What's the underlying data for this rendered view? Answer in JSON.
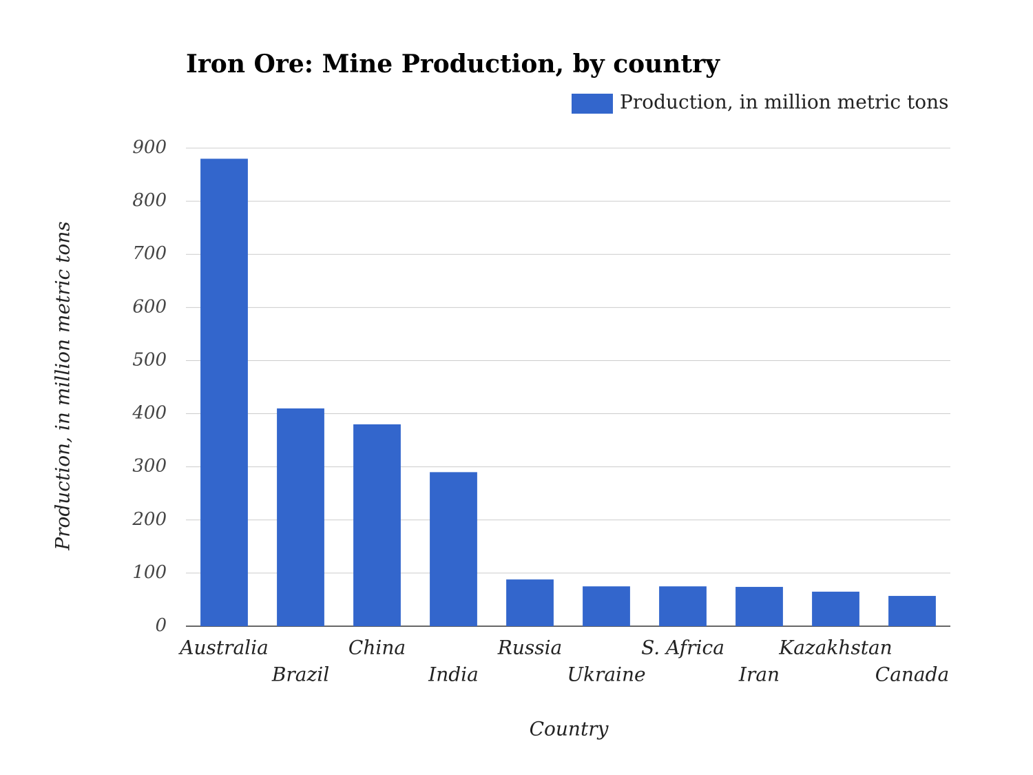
{
  "chart_data": {
    "type": "bar",
    "title": "Iron Ore: Mine Production, by country",
    "x_label": "Country",
    "y_label": "Production, in million metric tons",
    "categories": [
      "Australia",
      "Brazil",
      "China",
      "India",
      "Russia",
      "Ukraine",
      "S. Africa",
      "Iran",
      "Kazakhstan",
      "Canada"
    ],
    "series": [
      {
        "name": "Production, in million metric tons",
        "color": "#3366cc",
        "values": [
          880,
          410,
          380,
          290,
          88,
          75,
          75,
          74,
          65,
          57
        ]
      }
    ],
    "ylim": [
      0,
      900
    ],
    "yticks": [
      0,
      100,
      200,
      300,
      400,
      500,
      600,
      700,
      800,
      900
    ],
    "grid": true,
    "legend": "top-right"
  }
}
